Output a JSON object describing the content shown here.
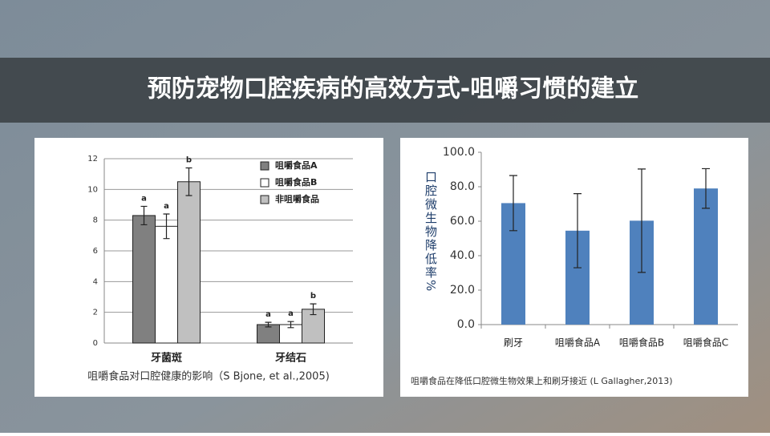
{
  "title": "预防宠物口腔疾病的高效方式-咀嚼习惯的建立",
  "chart_data": [
    {
      "type": "bar",
      "caption": "咀嚼食品对口腔健康的影响（S Bjone, et al.,2005)",
      "categories": [
        "牙菌斑",
        "牙结石"
      ],
      "series": [
        {
          "name": "咀嚼食品A",
          "color": "#808080",
          "values": [
            8.3,
            1.2
          ],
          "errors": [
            0.6,
            0.15
          ],
          "letters": [
            "a",
            "a"
          ]
        },
        {
          "name": "咀嚼食品B",
          "color": "#ffffff",
          "values": [
            7.6,
            1.2
          ],
          "errors": [
            0.8,
            0.2
          ],
          "letters": [
            "a",
            "a"
          ]
        },
        {
          "name": "非咀嚼食品",
          "color": "#c0c0c0",
          "values": [
            10.5,
            2.2
          ],
          "errors": [
            0.9,
            0.35
          ],
          "letters": [
            "b",
            "b"
          ]
        }
      ],
      "ylim": [
        0,
        12
      ],
      "yticks": [
        0,
        2,
        4,
        6,
        8,
        10,
        12
      ],
      "grid": true,
      "legend": "top-right"
    },
    {
      "type": "bar",
      "caption": "咀嚼食品在降低口腔微生物效果上和刷牙接近 (L Gallagher,2013)",
      "ylabel": "口腔微生物降低率%",
      "categories": [
        "刷牙",
        "咀嚼食品A",
        "咀嚼食品B",
        "咀嚼食品C"
      ],
      "series": [
        {
          "color": "#4f81bd",
          "values": [
            70.5,
            54.5,
            60.3,
            79.0
          ],
          "errors": [
            16,
            21.5,
            30,
            11.5
          ]
        }
      ],
      "ylim": [
        0,
        100
      ],
      "yticks": [
        {
          "value": 0,
          "label": "0.0"
        },
        {
          "value": 20,
          "label": "20.0"
        },
        {
          "value": 40,
          "label": "40.0"
        },
        {
          "value": 60,
          "label": "60.0"
        },
        {
          "value": 80,
          "label": "80.0"
        },
        {
          "value": 100,
          "label": "100.0"
        }
      ],
      "grid": false
    }
  ]
}
